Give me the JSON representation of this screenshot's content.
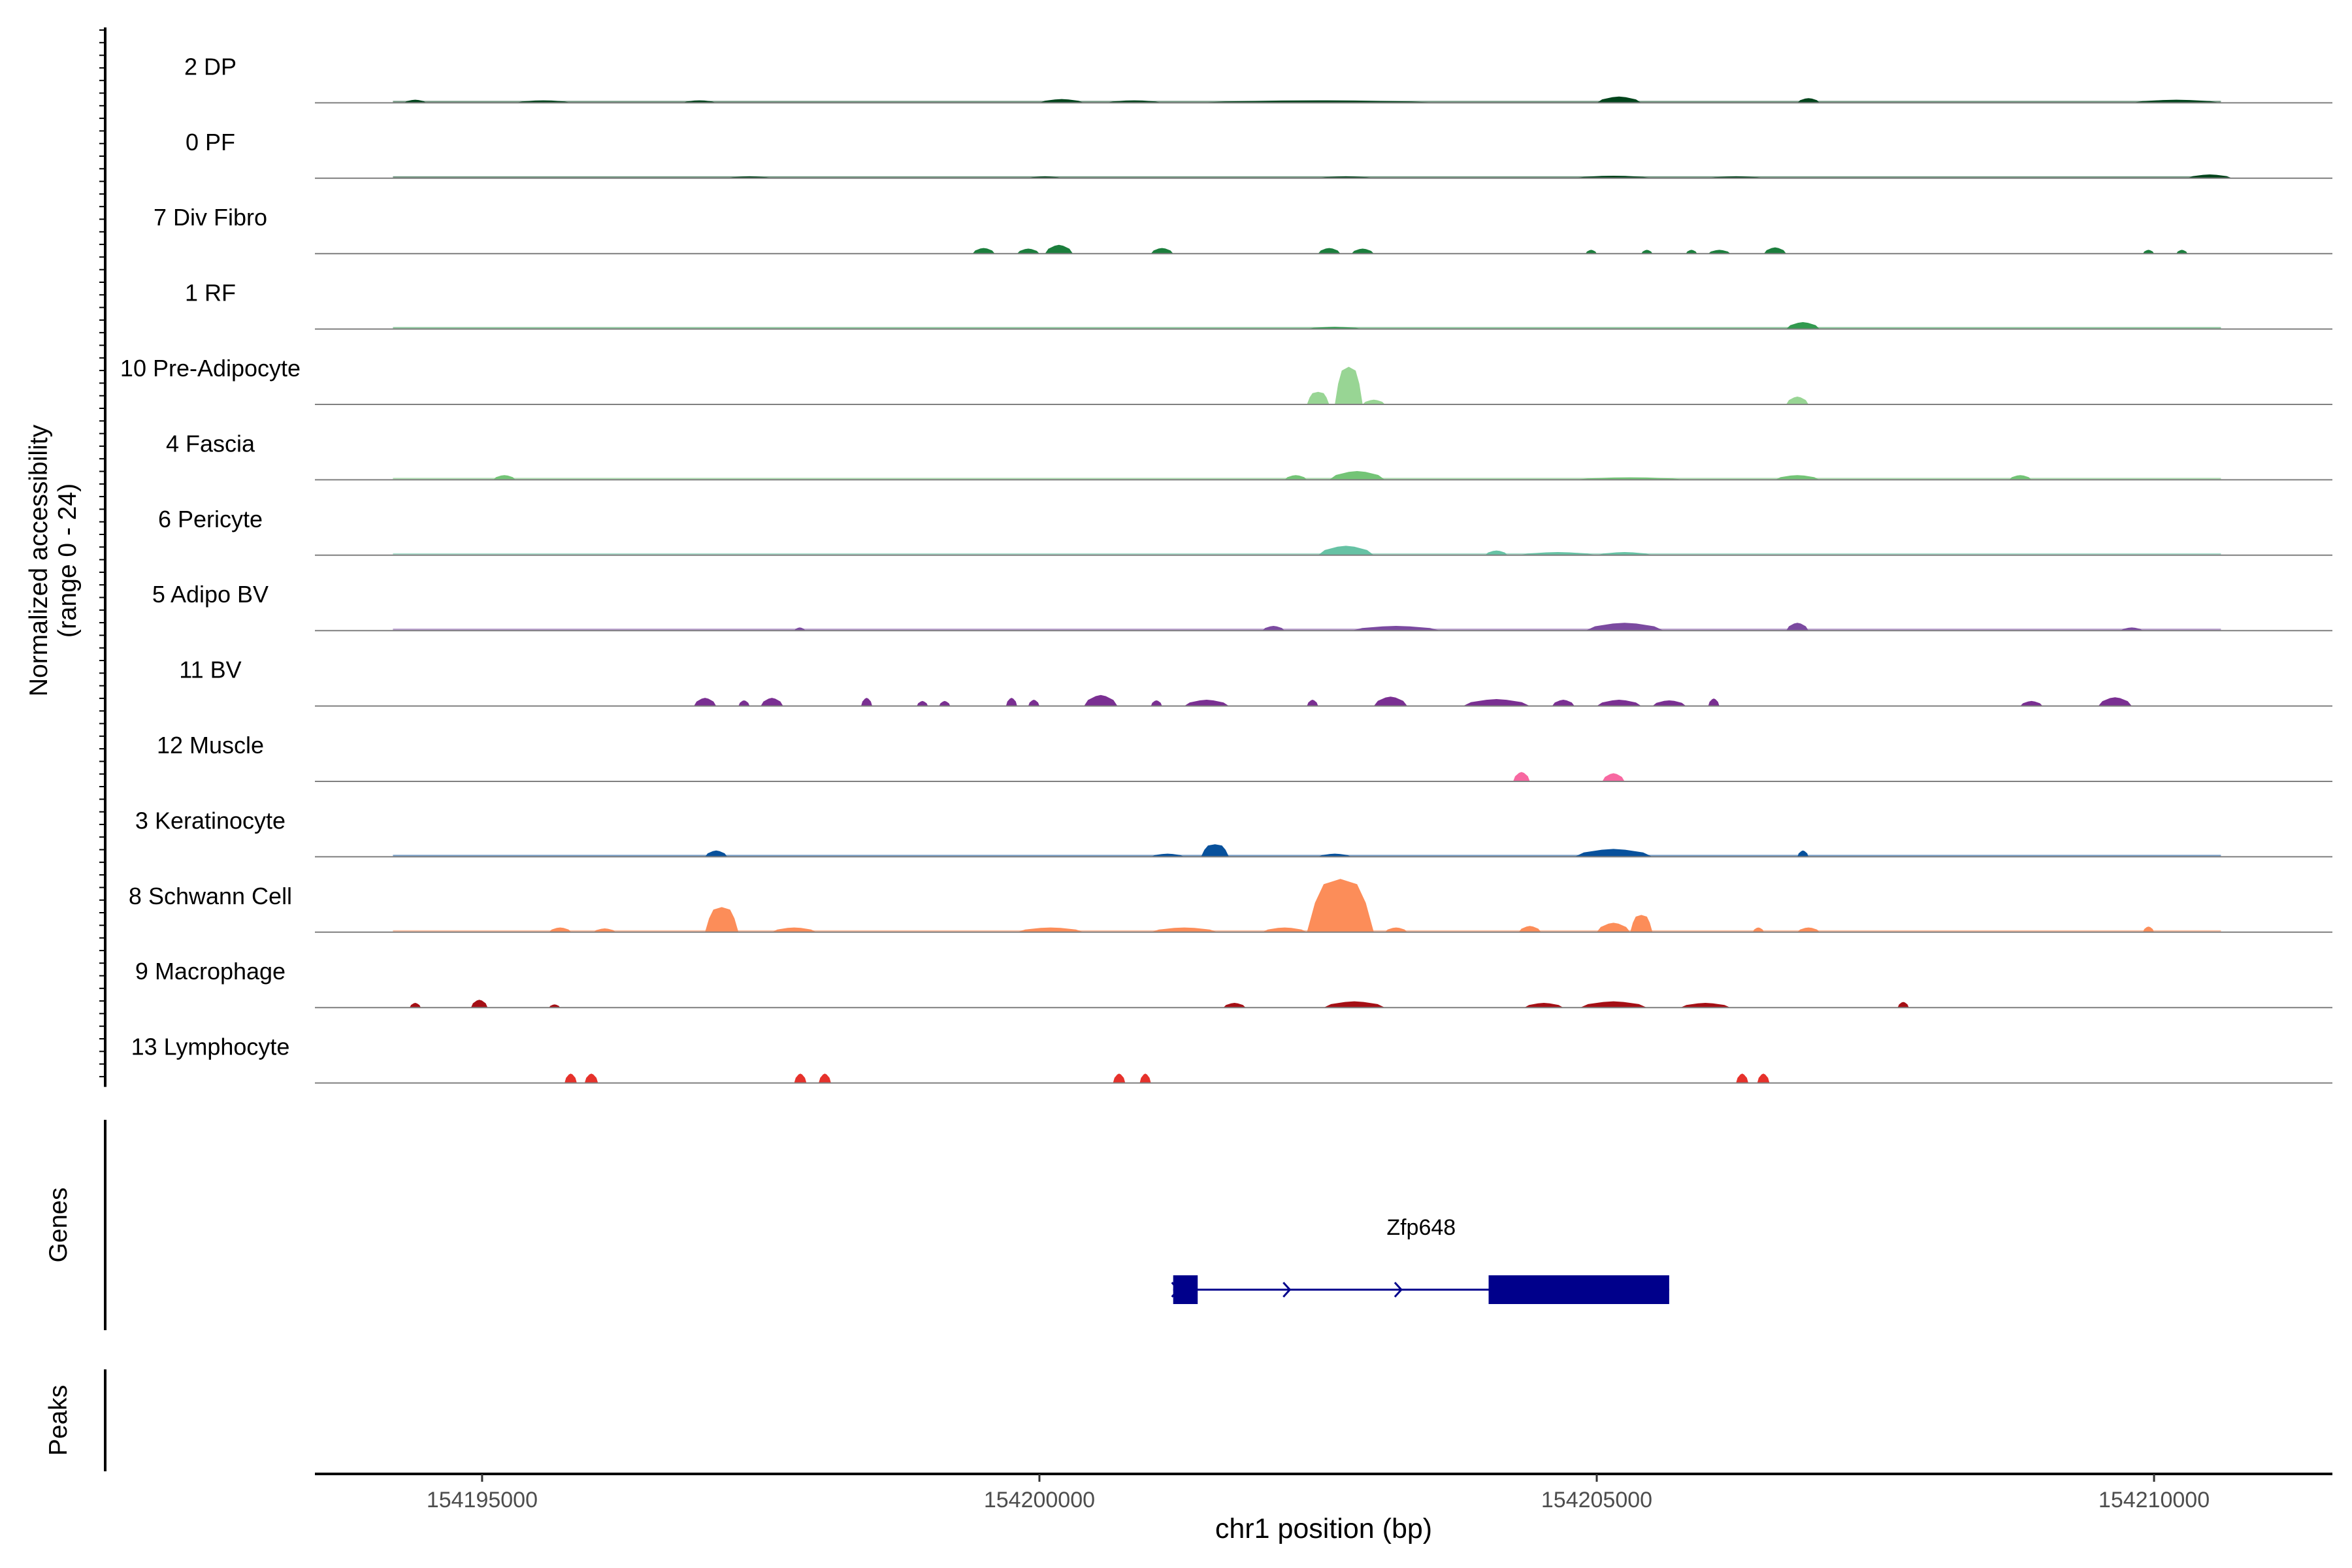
{
  "chart_data": {
    "type": "area",
    "title": "",
    "ylabel_line1": "Normalized accessibility",
    "ylabel_line2": "(range 0 - 24)",
    "xlabel": "chr1 position (bp)",
    "xlim": [
      154193500,
      154211600
    ],
    "y_range": [
      0,
      24
    ],
    "xticks": [
      154195000,
      154200000,
      154205000,
      154210000
    ],
    "xtick_labels": [
      "154195000",
      "154200000",
      "154205000",
      "154210000"
    ],
    "tracks": [
      {
        "name": "2 DP",
        "color": "#00441b",
        "baseline": true,
        "peaks": [
          {
            "start": 154194300,
            "end": 154194500,
            "h": 1.0
          },
          {
            "start": 154195300,
            "end": 154195800,
            "h": 0.8
          },
          {
            "start": 154196800,
            "end": 154197100,
            "h": 0.8
          },
          {
            "start": 154200000,
            "end": 154200400,
            "h": 1.2
          },
          {
            "start": 154200600,
            "end": 154201100,
            "h": 0.8
          },
          {
            "start": 154201400,
            "end": 154203600,
            "h": 0.8
          },
          {
            "start": 154205000,
            "end": 154205400,
            "h": 2.0
          },
          {
            "start": 154206800,
            "end": 154207000,
            "h": 1.5
          },
          {
            "start": 154209800,
            "end": 154210600,
            "h": 1.0
          }
        ]
      },
      {
        "name": "0 PF",
        "color": "#00441b",
        "baseline": true,
        "peaks": [
          {
            "start": 154197200,
            "end": 154197600,
            "h": 0.6
          },
          {
            "start": 154199900,
            "end": 154200200,
            "h": 0.6
          },
          {
            "start": 154202500,
            "end": 154203000,
            "h": 0.6
          },
          {
            "start": 154204800,
            "end": 154205500,
            "h": 0.8
          },
          {
            "start": 154206000,
            "end": 154206500,
            "h": 0.6
          },
          {
            "start": 154210300,
            "end": 154210700,
            "h": 1.2
          }
        ]
      },
      {
        "name": "7 Div Fibro",
        "color": "#1b7e3c",
        "baseline": false,
        "peaks": [
          {
            "start": 154199400,
            "end": 154199600,
            "h": 1.8
          },
          {
            "start": 154199800,
            "end": 154200000,
            "h": 1.6
          },
          {
            "start": 154200050,
            "end": 154200300,
            "h": 2.8
          },
          {
            "start": 154201000,
            "end": 154201200,
            "h": 1.8
          },
          {
            "start": 154202500,
            "end": 154202700,
            "h": 1.8
          },
          {
            "start": 154202800,
            "end": 154203000,
            "h": 1.6
          },
          {
            "start": 154204900,
            "end": 154205000,
            "h": 1.2
          },
          {
            "start": 154205400,
            "end": 154205500,
            "h": 1.2
          },
          {
            "start": 154205800,
            "end": 154205900,
            "h": 1.2
          },
          {
            "start": 154206000,
            "end": 154206200,
            "h": 1.2
          },
          {
            "start": 154206500,
            "end": 154206700,
            "h": 2.0
          },
          {
            "start": 154209900,
            "end": 154210000,
            "h": 1.2
          },
          {
            "start": 154210200,
            "end": 154210300,
            "h": 1.2
          }
        ]
      },
      {
        "name": "1 RF",
        "color": "#329a4f",
        "baseline": true,
        "peaks": [
          {
            "start": 154202400,
            "end": 154202900,
            "h": 0.7
          },
          {
            "start": 154206700,
            "end": 154207000,
            "h": 2.2
          }
        ]
      },
      {
        "name": "10 Pre-Adipocyte",
        "color": "#98d594",
        "baseline": false,
        "peaks": [
          {
            "start": 154202400,
            "end": 154202600,
            "h": 4.0
          },
          {
            "start": 154202650,
            "end": 154202900,
            "h": 12.0
          },
          {
            "start": 154202900,
            "end": 154203100,
            "h": 1.5
          },
          {
            "start": 154206700,
            "end": 154206900,
            "h": 2.5
          }
        ]
      },
      {
        "name": "4 Fascia",
        "color": "#73c476",
        "baseline": true,
        "peaks": [
          {
            "start": 154195100,
            "end": 154195300,
            "h": 1.5
          },
          {
            "start": 154202200,
            "end": 154202400,
            "h": 1.5
          },
          {
            "start": 154202600,
            "end": 154203100,
            "h": 2.8
          },
          {
            "start": 154204800,
            "end": 154205800,
            "h": 0.8
          },
          {
            "start": 154206600,
            "end": 154207000,
            "h": 1.5
          },
          {
            "start": 154208700,
            "end": 154208900,
            "h": 1.5
          }
        ]
      },
      {
        "name": "6 Pericyte",
        "color": "#66c2a4",
        "baseline": true,
        "peaks": [
          {
            "start": 154202500,
            "end": 154203000,
            "h": 3.0
          },
          {
            "start": 154204000,
            "end": 154204200,
            "h": 1.5
          },
          {
            "start": 154204300,
            "end": 154205000,
            "h": 1.0
          },
          {
            "start": 154205000,
            "end": 154205500,
            "h": 1.0
          }
        ]
      },
      {
        "name": "5 Adipo BV",
        "color": "#7b4aa0",
        "baseline": true,
        "peaks": [
          {
            "start": 154197800,
            "end": 154197900,
            "h": 1.0
          },
          {
            "start": 154202000,
            "end": 154202200,
            "h": 1.5
          },
          {
            "start": 154202800,
            "end": 154203600,
            "h": 1.5
          },
          {
            "start": 154204900,
            "end": 154205600,
            "h": 2.5
          },
          {
            "start": 154206700,
            "end": 154206900,
            "h": 2.5
          },
          {
            "start": 154209700,
            "end": 154209900,
            "h": 1.0
          }
        ]
      },
      {
        "name": "11 BV",
        "color": "#7a2f92",
        "baseline": false,
        "peaks": [
          {
            "start": 154196900,
            "end": 154197100,
            "h": 2.6
          },
          {
            "start": 154197300,
            "end": 154197400,
            "h": 1.8
          },
          {
            "start": 154197500,
            "end": 154197700,
            "h": 2.6
          },
          {
            "start": 154198400,
            "end": 154198500,
            "h": 2.6
          },
          {
            "start": 154198900,
            "end": 154199000,
            "h": 1.6
          },
          {
            "start": 154199100,
            "end": 154199200,
            "h": 1.6
          },
          {
            "start": 154199700,
            "end": 154199800,
            "h": 2.6
          },
          {
            "start": 154199900,
            "end": 154200000,
            "h": 2.0
          },
          {
            "start": 154200400,
            "end": 154200700,
            "h": 3.5
          },
          {
            "start": 154201000,
            "end": 154201100,
            "h": 1.8
          },
          {
            "start": 154201300,
            "end": 154201700,
            "h": 2.0
          },
          {
            "start": 154202400,
            "end": 154202500,
            "h": 2.0
          },
          {
            "start": 154203000,
            "end": 154203300,
            "h": 3.0
          },
          {
            "start": 154203800,
            "end": 154204400,
            "h": 2.2
          },
          {
            "start": 154204600,
            "end": 154204800,
            "h": 2.0
          },
          {
            "start": 154205000,
            "end": 154205400,
            "h": 2.0
          },
          {
            "start": 154205500,
            "end": 154205800,
            "h": 1.8
          },
          {
            "start": 154206000,
            "end": 154206100,
            "h": 2.4
          },
          {
            "start": 154208800,
            "end": 154209000,
            "h": 1.6
          },
          {
            "start": 154209500,
            "end": 154209800,
            "h": 2.8
          }
        ]
      },
      {
        "name": "12 Muscle",
        "color": "#f768a1",
        "baseline": false,
        "peaks": [
          {
            "start": 154204250,
            "end": 154204400,
            "h": 3.0
          },
          {
            "start": 154205050,
            "end": 154205250,
            "h": 2.6
          }
        ]
      },
      {
        "name": "3 Keratinocyte",
        "color": "#08519c",
        "baseline": true,
        "peaks": [
          {
            "start": 154197000,
            "end": 154197200,
            "h": 2.0
          },
          {
            "start": 154201000,
            "end": 154201300,
            "h": 1.0
          },
          {
            "start": 154201450,
            "end": 154201700,
            "h": 4.0
          },
          {
            "start": 154202500,
            "end": 154202800,
            "h": 1.0
          },
          {
            "start": 154204800,
            "end": 154205500,
            "h": 2.5
          },
          {
            "start": 154206800,
            "end": 154206900,
            "h": 2.0
          }
        ]
      },
      {
        "name": "8 Schwann Cell",
        "color": "#fc8d59",
        "baseline": true,
        "peaks": [
          {
            "start": 154195600,
            "end": 154195800,
            "h": 1.5
          },
          {
            "start": 154196000,
            "end": 154196200,
            "h": 1.2
          },
          {
            "start": 154197000,
            "end": 154197300,
            "h": 8.0
          },
          {
            "start": 154197600,
            "end": 154198000,
            "h": 1.5
          },
          {
            "start": 154199800,
            "end": 154200400,
            "h": 1.5
          },
          {
            "start": 154201000,
            "end": 154201600,
            "h": 1.5
          },
          {
            "start": 154202000,
            "end": 154202400,
            "h": 1.5
          },
          {
            "start": 154202400,
            "end": 154203000,
            "h": 17.0
          },
          {
            "start": 154203100,
            "end": 154203300,
            "h": 1.5
          },
          {
            "start": 154204300,
            "end": 154204500,
            "h": 2.0
          },
          {
            "start": 154205000,
            "end": 154205300,
            "h": 3.0
          },
          {
            "start": 154205300,
            "end": 154205500,
            "h": 5.5
          },
          {
            "start": 154206400,
            "end": 154206500,
            "h": 1.5
          },
          {
            "start": 154206800,
            "end": 154207000,
            "h": 1.5
          },
          {
            "start": 154209900,
            "end": 154210000,
            "h": 1.8
          }
        ]
      },
      {
        "name": "9 Macrophage",
        "color": "#a50f15",
        "baseline": false,
        "peaks": [
          {
            "start": 154194350,
            "end": 154194450,
            "h": 1.5
          },
          {
            "start": 154194900,
            "end": 154195050,
            "h": 2.5
          },
          {
            "start": 154195600,
            "end": 154195700,
            "h": 1.0
          },
          {
            "start": 154201650,
            "end": 154201850,
            "h": 1.5
          },
          {
            "start": 154202550,
            "end": 154203100,
            "h": 2.0
          },
          {
            "start": 154204350,
            "end": 154204700,
            "h": 1.5
          },
          {
            "start": 154204850,
            "end": 154205450,
            "h": 2.0
          },
          {
            "start": 154205750,
            "end": 154206200,
            "h": 1.5
          },
          {
            "start": 154207700,
            "end": 154207800,
            "h": 1.8
          }
        ]
      },
      {
        "name": "13 Lymphocyte",
        "color": "#e6312b",
        "baseline": false,
        "peaks": [
          {
            "start": 154195740,
            "end": 154195850,
            "h": 3.0
          },
          {
            "start": 154195920,
            "end": 154196040,
            "h": 3.0
          },
          {
            "start": 154197800,
            "end": 154197910,
            "h": 3.0
          },
          {
            "start": 154198020,
            "end": 154198130,
            "h": 3.0
          },
          {
            "start": 154200660,
            "end": 154200770,
            "h": 3.0
          },
          {
            "start": 154200900,
            "end": 154201000,
            "h": 3.0
          },
          {
            "start": 154206250,
            "end": 154206360,
            "h": 3.0
          },
          {
            "start": 154206440,
            "end": 154206550,
            "h": 3.0
          }
        ]
      }
    ],
    "genes_label": "Genes",
    "peaks_label": "Peaks",
    "gene": {
      "name": "Zfp648",
      "start": 154201200,
      "end": 154205650,
      "strand": "+",
      "exons": [
        [
          154201200,
          154201420
        ],
        [
          154204030,
          154205650
        ]
      ],
      "color": "#00008b"
    }
  }
}
